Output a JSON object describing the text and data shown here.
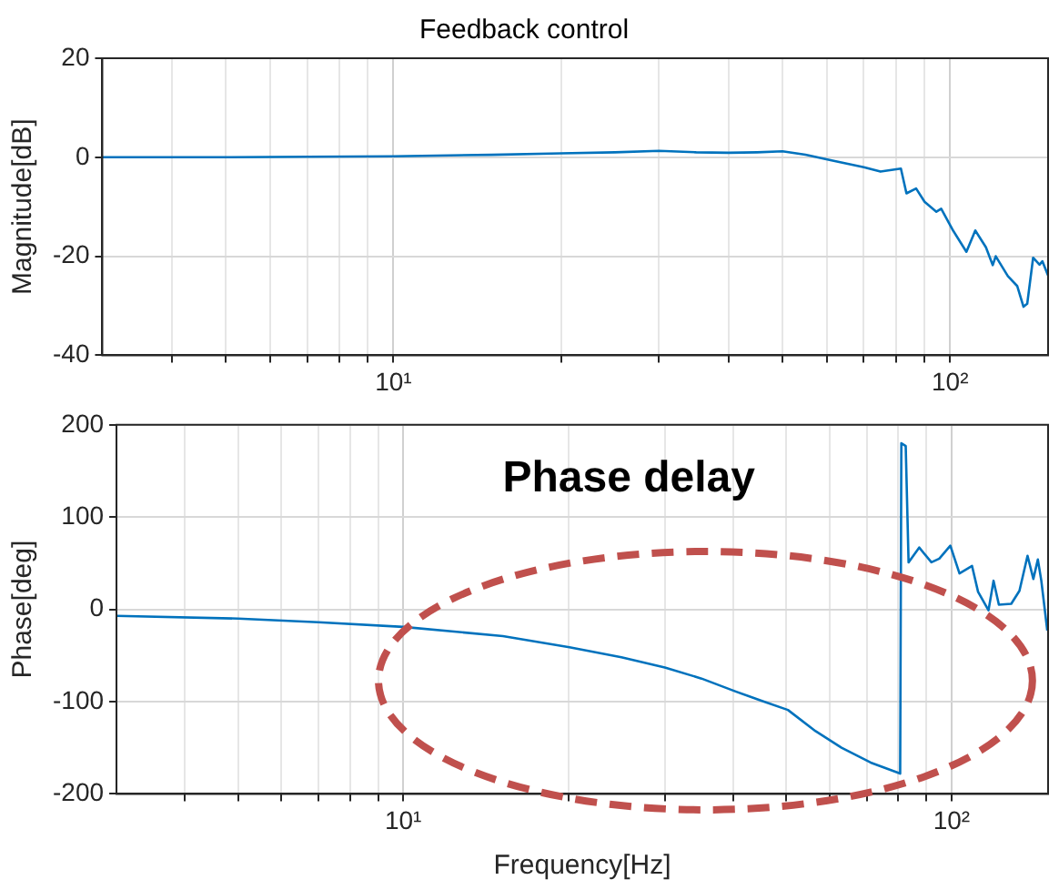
{
  "chart_data": [
    {
      "type": "line",
      "title": "Feedback control",
      "ylabel": "Magnitude[dB]",
      "log": "x",
      "grid": true,
      "color": "#0072bd",
      "xlim": [
        3,
        150
      ],
      "xticks": [
        {
          "value": 4,
          "label": null
        },
        {
          "value": 5,
          "label": null
        },
        {
          "value": 6,
          "label": null
        },
        {
          "value": 7,
          "label": null
        },
        {
          "value": 8,
          "label": null
        },
        {
          "value": 9,
          "label": null
        },
        {
          "value": 10,
          "label": "10¹"
        },
        {
          "value": 20,
          "label": null
        },
        {
          "value": 30,
          "label": null
        },
        {
          "value": 40,
          "label": null
        },
        {
          "value": 50,
          "label": null
        },
        {
          "value": 60,
          "label": null
        },
        {
          "value": 70,
          "label": null
        },
        {
          "value": 80,
          "label": null
        },
        {
          "value": 90,
          "label": null
        },
        {
          "value": 100,
          "label": "10²"
        }
      ],
      "ylim": [
        -40,
        20
      ],
      "yticks": [
        -40,
        -20,
        0,
        20
      ],
      "x": [
        3,
        4,
        5,
        7,
        10,
        15,
        20,
        25,
        30,
        35,
        40,
        45,
        50,
        55,
        61,
        70,
        75,
        81.6,
        83.5,
        86.9,
        90,
        94.5,
        96.4,
        101,
        107,
        111,
        116,
        119.3,
        120.8,
        127,
        132,
        135.5,
        137.6,
        141,
        144.8,
        146.5,
        150
      ],
      "values": [
        0,
        0,
        0,
        0.1,
        0.2,
        0.5,
        0.8,
        1,
        1.3,
        1,
        0.9,
        1,
        1.2,
        0.5,
        -0.6,
        -2,
        -2.9,
        -2.3,
        -7.3,
        -6.3,
        -9,
        -11,
        -10.4,
        -14.6,
        -19.1,
        -14.8,
        -18.2,
        -21.8,
        -20,
        -24,
        -26,
        -30.2,
        -29.6,
        -20.3,
        -21.7,
        -21,
        -23.9
      ]
    },
    {
      "type": "line",
      "xlabel": "Frequency[Hz]",
      "ylabel": "Phase[deg]",
      "log": "x",
      "grid": true,
      "color": "#0072bd",
      "annotations": [
        "Phase delay"
      ],
      "xlim": [
        3,
        150
      ],
      "xticks": [
        {
          "value": 4,
          "label": null
        },
        {
          "value": 5,
          "label": null
        },
        {
          "value": 6,
          "label": null
        },
        {
          "value": 7,
          "label": null
        },
        {
          "value": 8,
          "label": null
        },
        {
          "value": 9,
          "label": null
        },
        {
          "value": 10,
          "label": "10¹"
        },
        {
          "value": 20,
          "label": null
        },
        {
          "value": 30,
          "label": null
        },
        {
          "value": 40,
          "label": null
        },
        {
          "value": 50,
          "label": null
        },
        {
          "value": 60,
          "label": null
        },
        {
          "value": 70,
          "label": null
        },
        {
          "value": 80,
          "label": null
        },
        {
          "value": 90,
          "label": null
        },
        {
          "value": 100,
          "label": "10²"
        }
      ],
      "ylim": [
        -200,
        200
      ],
      "yticks": [
        -200,
        -100,
        0,
        100,
        200
      ],
      "x": [
        3,
        5,
        7,
        10,
        15.2,
        20.1,
        25,
        30,
        35,
        40.4,
        45,
        50.3,
        56.5,
        63,
        71.2,
        80.6,
        81,
        82.5,
        83.5,
        87.3,
        91.9,
        95,
        99.5,
        103.4,
        109,
        111.8,
        116.8,
        119.3,
        122,
        128.5,
        133,
        137.6,
        141,
        143.7,
        145.8,
        149.5
      ],
      "values": [
        -7,
        -10,
        -14,
        -19,
        -29,
        -41,
        -52,
        -63,
        -75,
        -89,
        -99,
        -109,
        -132,
        -150,
        -166,
        -178,
        180,
        177,
        51,
        67,
        51,
        55,
        69,
        39,
        47,
        19,
        -1,
        31,
        5,
        6,
        20,
        58,
        33,
        54,
        31,
        -23
      ]
    }
  ]
}
